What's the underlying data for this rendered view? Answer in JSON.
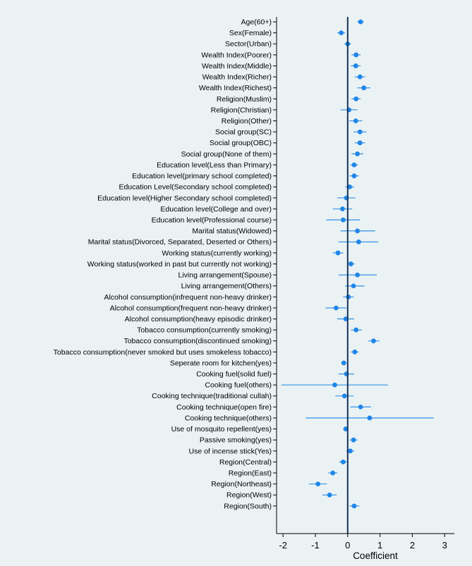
{
  "chart_data": {
    "type": "scatter",
    "style": "forest-plot",
    "title": "",
    "xlabel": "Coefficient",
    "ylabel": "",
    "xlim": [
      -2.2,
      3.3
    ],
    "xticks": [
      -2,
      -1,
      0,
      1,
      2,
      3
    ],
    "xtick_labels": [
      "-2",
      "-1",
      "0",
      "1",
      "2",
      "3"
    ],
    "reference_line": 0,
    "colors": {
      "point": "#1f86e8",
      "ci": "#1f86e8",
      "reference_line": "#17335a",
      "background": "#eaf2f3"
    },
    "rows": [
      {
        "label": "Age(60+)",
        "estimate": 0.4,
        "ci": [
          0.3,
          0.5
        ]
      },
      {
        "label": "Sex(Female)",
        "estimate": -0.2,
        "ci": [
          -0.32,
          -0.08
        ]
      },
      {
        "label": "Sector(Urban)",
        "estimate": 0.0,
        "ci": [
          -0.1,
          0.1
        ]
      },
      {
        "label": "Wealth Index(Poorer)",
        "estimate": 0.26,
        "ci": [
          0.12,
          0.4
        ]
      },
      {
        "label": "Wealth Index(Middle)",
        "estimate": 0.25,
        "ci": [
          0.1,
          0.4
        ]
      },
      {
        "label": "Wealth Index(Richer)",
        "estimate": 0.38,
        "ci": [
          0.22,
          0.54
        ]
      },
      {
        "label": "Wealth Index(Richest)",
        "estimate": 0.5,
        "ci": [
          0.3,
          0.7
        ]
      },
      {
        "label": "Religion(Muslim)",
        "estimate": 0.26,
        "ci": [
          0.12,
          0.4
        ]
      },
      {
        "label": "Religion(Christian)",
        "estimate": 0.04,
        "ci": [
          -0.22,
          0.3
        ]
      },
      {
        "label": "Religion(Other)",
        "estimate": 0.25,
        "ci": [
          0.05,
          0.45
        ]
      },
      {
        "label": "Social group(SC)",
        "estimate": 0.38,
        "ci": [
          0.18,
          0.58
        ]
      },
      {
        "label": "Social group(OBC)",
        "estimate": 0.38,
        "ci": [
          0.22,
          0.54
        ]
      },
      {
        "label": "Social group(None of them)",
        "estimate": 0.3,
        "ci": [
          0.12,
          0.48
        ]
      },
      {
        "label": "Education level(Less than Primary)",
        "estimate": 0.2,
        "ci": [
          0.08,
          0.32
        ]
      },
      {
        "label": "Education level(primary school completed)",
        "estimate": 0.2,
        "ci": [
          0.06,
          0.34
        ]
      },
      {
        "label": "Education Level(Secondary school completed)",
        "estimate": 0.06,
        "ci": [
          -0.08,
          0.2
        ]
      },
      {
        "label": "Education level(Higher Secondary school completed)",
        "estimate": -0.04,
        "ci": [
          -0.32,
          0.24
        ]
      },
      {
        "label": "Education level(College and over)",
        "estimate": -0.16,
        "ci": [
          -0.46,
          0.14
        ]
      },
      {
        "label": "Education level(Professional course)",
        "estimate": -0.14,
        "ci": [
          -0.66,
          0.38
        ]
      },
      {
        "label": "Marital status(Widowed)",
        "estimate": 0.3,
        "ci": [
          -0.22,
          0.85
        ]
      },
      {
        "label": "Marital status(Divorced, Separated, Deserted or Others)",
        "estimate": 0.34,
        "ci": [
          -0.28,
          0.95
        ]
      },
      {
        "label": "Working status(currently working)",
        "estimate": -0.3,
        "ci": [
          -0.46,
          -0.14
        ]
      },
      {
        "label": "Working status(worked in past but currently not working)",
        "estimate": 0.1,
        "ci": [
          0.0,
          0.22
        ]
      },
      {
        "label": "Living arrangement(Spouse)",
        "estimate": 0.3,
        "ci": [
          -0.28,
          0.9
        ]
      },
      {
        "label": "Living arrangement(Others)",
        "estimate": 0.18,
        "ci": [
          -0.08,
          0.52
        ]
      },
      {
        "label": "Alcohol consumption(infrequent non-heavy drinker)",
        "estimate": 0.02,
        "ci": [
          -0.14,
          0.18
        ]
      },
      {
        "label": "Alcohol consumption(frequent non-heavy drinker)",
        "estimate": -0.36,
        "ci": [
          -0.68,
          -0.04
        ]
      },
      {
        "label": "Alcohol consumption(heavy episodic drinker)",
        "estimate": -0.06,
        "ci": [
          -0.32,
          0.2
        ]
      },
      {
        "label": "Tobacco consumption(currently smoking)",
        "estimate": 0.26,
        "ci": [
          0.1,
          0.44
        ]
      },
      {
        "label": "Tobacco consumption(discontinued smoking)",
        "estimate": 0.8,
        "ci": [
          0.64,
          0.98
        ]
      },
      {
        "label": "Tobacco consumption(never smoked but uses smokeless tobacco)",
        "estimate": 0.22,
        "ci": [
          0.1,
          0.34
        ]
      },
      {
        "label": "Seperate room for kitchen(yes)",
        "estimate": -0.12,
        "ci": [
          -0.2,
          -0.04
        ]
      },
      {
        "label": "Cooking fuel(solid fuel)",
        "estimate": -0.04,
        "ci": [
          -0.28,
          0.2
        ]
      },
      {
        "label": "Cooking fuel(others)",
        "estimate": -0.4,
        "ci": [
          -2.05,
          1.25
        ]
      },
      {
        "label": "Cooking technique(traditional cullah)",
        "estimate": -0.1,
        "ci": [
          -0.38,
          0.18
        ]
      },
      {
        "label": "Cooking technique(open fire)",
        "estimate": 0.4,
        "ci": [
          0.08,
          0.72
        ]
      },
      {
        "label": "Cooking technique(others)",
        "estimate": 0.68,
        "ci": [
          -1.3,
          2.66
        ]
      },
      {
        "label": "Use of mosquito repellent(yes)",
        "estimate": -0.06,
        "ci": [
          -0.14,
          0.02
        ]
      },
      {
        "label": "Passive smoking(yes)",
        "estimate": 0.18,
        "ci": [
          0.06,
          0.3
        ]
      },
      {
        "label": "Use of incense stick(Yes)",
        "estimate": 0.08,
        "ci": [
          -0.04,
          0.2
        ]
      },
      {
        "label": "Region(Central)",
        "estimate": -0.14,
        "ci": [
          -0.26,
          -0.02
        ]
      },
      {
        "label": "Region(East)",
        "estimate": -0.46,
        "ci": [
          -0.6,
          -0.32
        ]
      },
      {
        "label": "Region(Northeast)",
        "estimate": -0.92,
        "ci": [
          -1.2,
          -0.64
        ]
      },
      {
        "label": "Region(West)",
        "estimate": -0.56,
        "ci": [
          -0.78,
          -0.34
        ]
      },
      {
        "label": "Region(South)",
        "estimate": 0.2,
        "ci": [
          0.06,
          0.36
        ]
      }
    ]
  }
}
